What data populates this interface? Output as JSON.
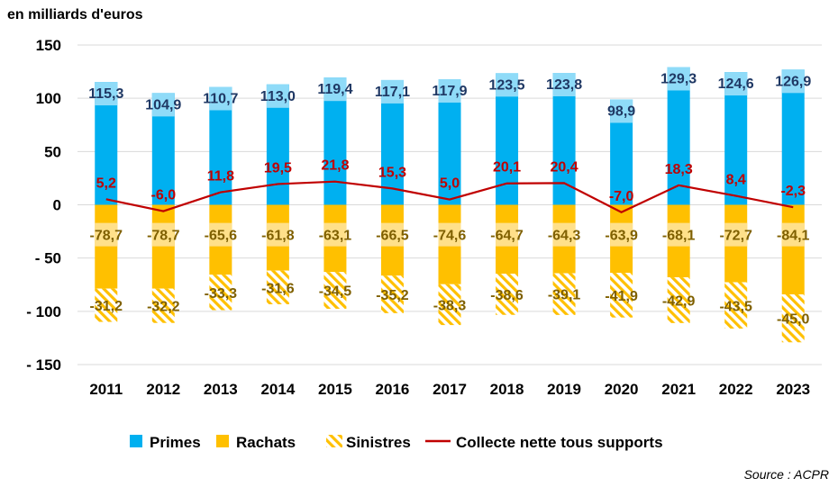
{
  "chart_data": {
    "type": "bar",
    "unit_label": "en milliards d'euros",
    "source": "Source : ACPR",
    "categories": [
      "2011",
      "2012",
      "2013",
      "2014",
      "2015",
      "2016",
      "2017",
      "2018",
      "2019",
      "2020",
      "2021",
      "2022",
      "2023"
    ],
    "series": [
      {
        "name": "Primes",
        "kind": "bar",
        "color": "#00B0F0",
        "values": [
          115.3,
          104.9,
          110.7,
          113.0,
          119.4,
          117.1,
          117.9,
          123.5,
          123.8,
          98.9,
          129.3,
          124.6,
          126.9
        ],
        "labels": [
          "115,3",
          "104,9",
          "110,7",
          "113,0",
          "119,4",
          "117,1",
          "117,9",
          "123,5",
          "123,8",
          "98,9",
          "129,3",
          "124,6",
          "126,9"
        ]
      },
      {
        "name": "Rachats",
        "kind": "bar",
        "color": "#FFC000",
        "values": [
          -78.7,
          -78.7,
          -65.6,
          -61.8,
          -63.1,
          -66.5,
          -74.6,
          -64.7,
          -64.3,
          -63.9,
          -68.1,
          -72.7,
          -84.1
        ],
        "labels": [
          "-78,7",
          "-78,7",
          "-65,6",
          "-61,8",
          "-63,1",
          "-66,5",
          "-74,6",
          "-64,7",
          "-64,3",
          "-63,9",
          "-68,1",
          "-72,7",
          "-84,1"
        ]
      },
      {
        "name": "Sinistres",
        "kind": "bar-hatched",
        "color": "#FFC000",
        "values": [
          -31.2,
          -32.2,
          -33.3,
          -31.6,
          -34.5,
          -35.2,
          -38.3,
          -38.6,
          -39.1,
          -41.9,
          -42.9,
          -43.5,
          -45.0
        ],
        "labels": [
          "-31,2",
          "-32,2",
          "-33,3",
          "-31,6",
          "-34,5",
          "-35,2",
          "-38,3",
          "-38,6",
          "-39,1",
          "-41,9",
          "-42,9",
          "-43,5",
          "-45,0"
        ]
      },
      {
        "name": "Collecte nette tous supports",
        "kind": "line",
        "color": "#C00000",
        "values": [
          5.2,
          -6.0,
          11.8,
          19.5,
          21.8,
          15.3,
          5.0,
          20.1,
          20.4,
          -7.0,
          18.3,
          8.4,
          -2.3
        ],
        "labels": [
          "5,2",
          "-6,0",
          "11,8",
          "19,5",
          "21,8",
          "15,3",
          "5,0",
          "20,1",
          "20,4",
          "-7,0",
          "18,3",
          "8,4",
          "-2,3"
        ]
      }
    ],
    "yticks": [
      150,
      100,
      50,
      0,
      -50,
      -100,
      -150
    ],
    "ytick_labels": [
      "150",
      "100",
      "50",
      "0",
      "-  50",
      "-  100",
      "-  150"
    ],
    "ylim": [
      -150,
      150
    ],
    "grid": true,
    "legend_position": "bottom"
  }
}
